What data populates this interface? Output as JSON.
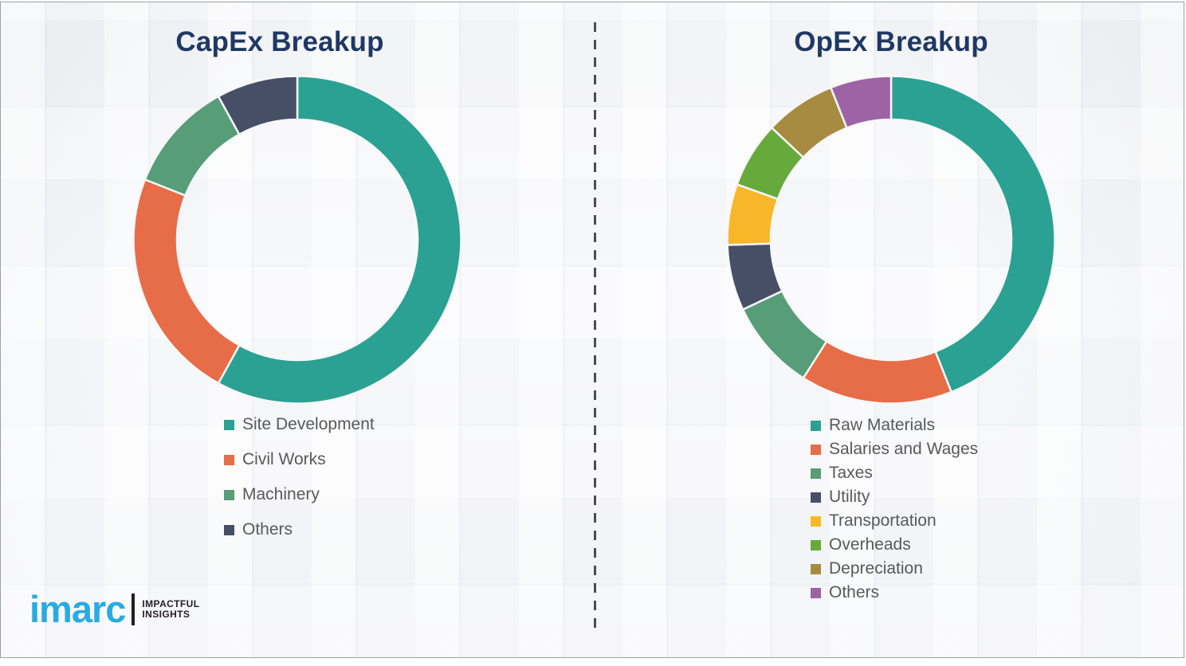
{
  "logo": {
    "brand": "imarc",
    "tagline_line1": "IMPACTFUL",
    "tagline_line2": "INSIGHTS"
  },
  "divider_style": "vertical-dashed",
  "colors": {
    "title_navy": "#1f3864",
    "legend_text_gray": "#595959",
    "logo_blue": "#29abe2",
    "logo_black": "#231f20",
    "background": "#f3f4f6"
  },
  "chart_data": [
    {
      "type": "pie",
      "subtype": "donut",
      "title": "CapEx Breakup",
      "value_unit": "percent_estimated_from_arc_angles",
      "start_angle_deg": 0,
      "direction": "clockwise",
      "legend_position": "bottom",
      "labels": [
        "Site Development",
        "Civil Works",
        "Machinery",
        "Others"
      ],
      "values": [
        58,
        23,
        11,
        8
      ],
      "colors": [
        "#2aa193",
        "#e76c48",
        "#579d78",
        "#474f66"
      ]
    },
    {
      "type": "pie",
      "subtype": "donut",
      "title": "OpEx Breakup",
      "value_unit": "percent_estimated_from_arc_angles",
      "start_angle_deg": 0,
      "direction": "clockwise",
      "legend_position": "bottom",
      "labels": [
        "Raw Materials",
        "Salaries and Wages",
        "Taxes",
        "Utility",
        "Transportation",
        "Overheads",
        "Depreciation",
        "Others"
      ],
      "values": [
        44,
        15,
        9,
        6.5,
        6,
        6.5,
        7,
        6
      ],
      "colors": [
        "#2aa193",
        "#e76c48",
        "#579d78",
        "#474f66",
        "#f8b729",
        "#67aa3c",
        "#a68b41",
        "#9d63a5"
      ]
    }
  ]
}
